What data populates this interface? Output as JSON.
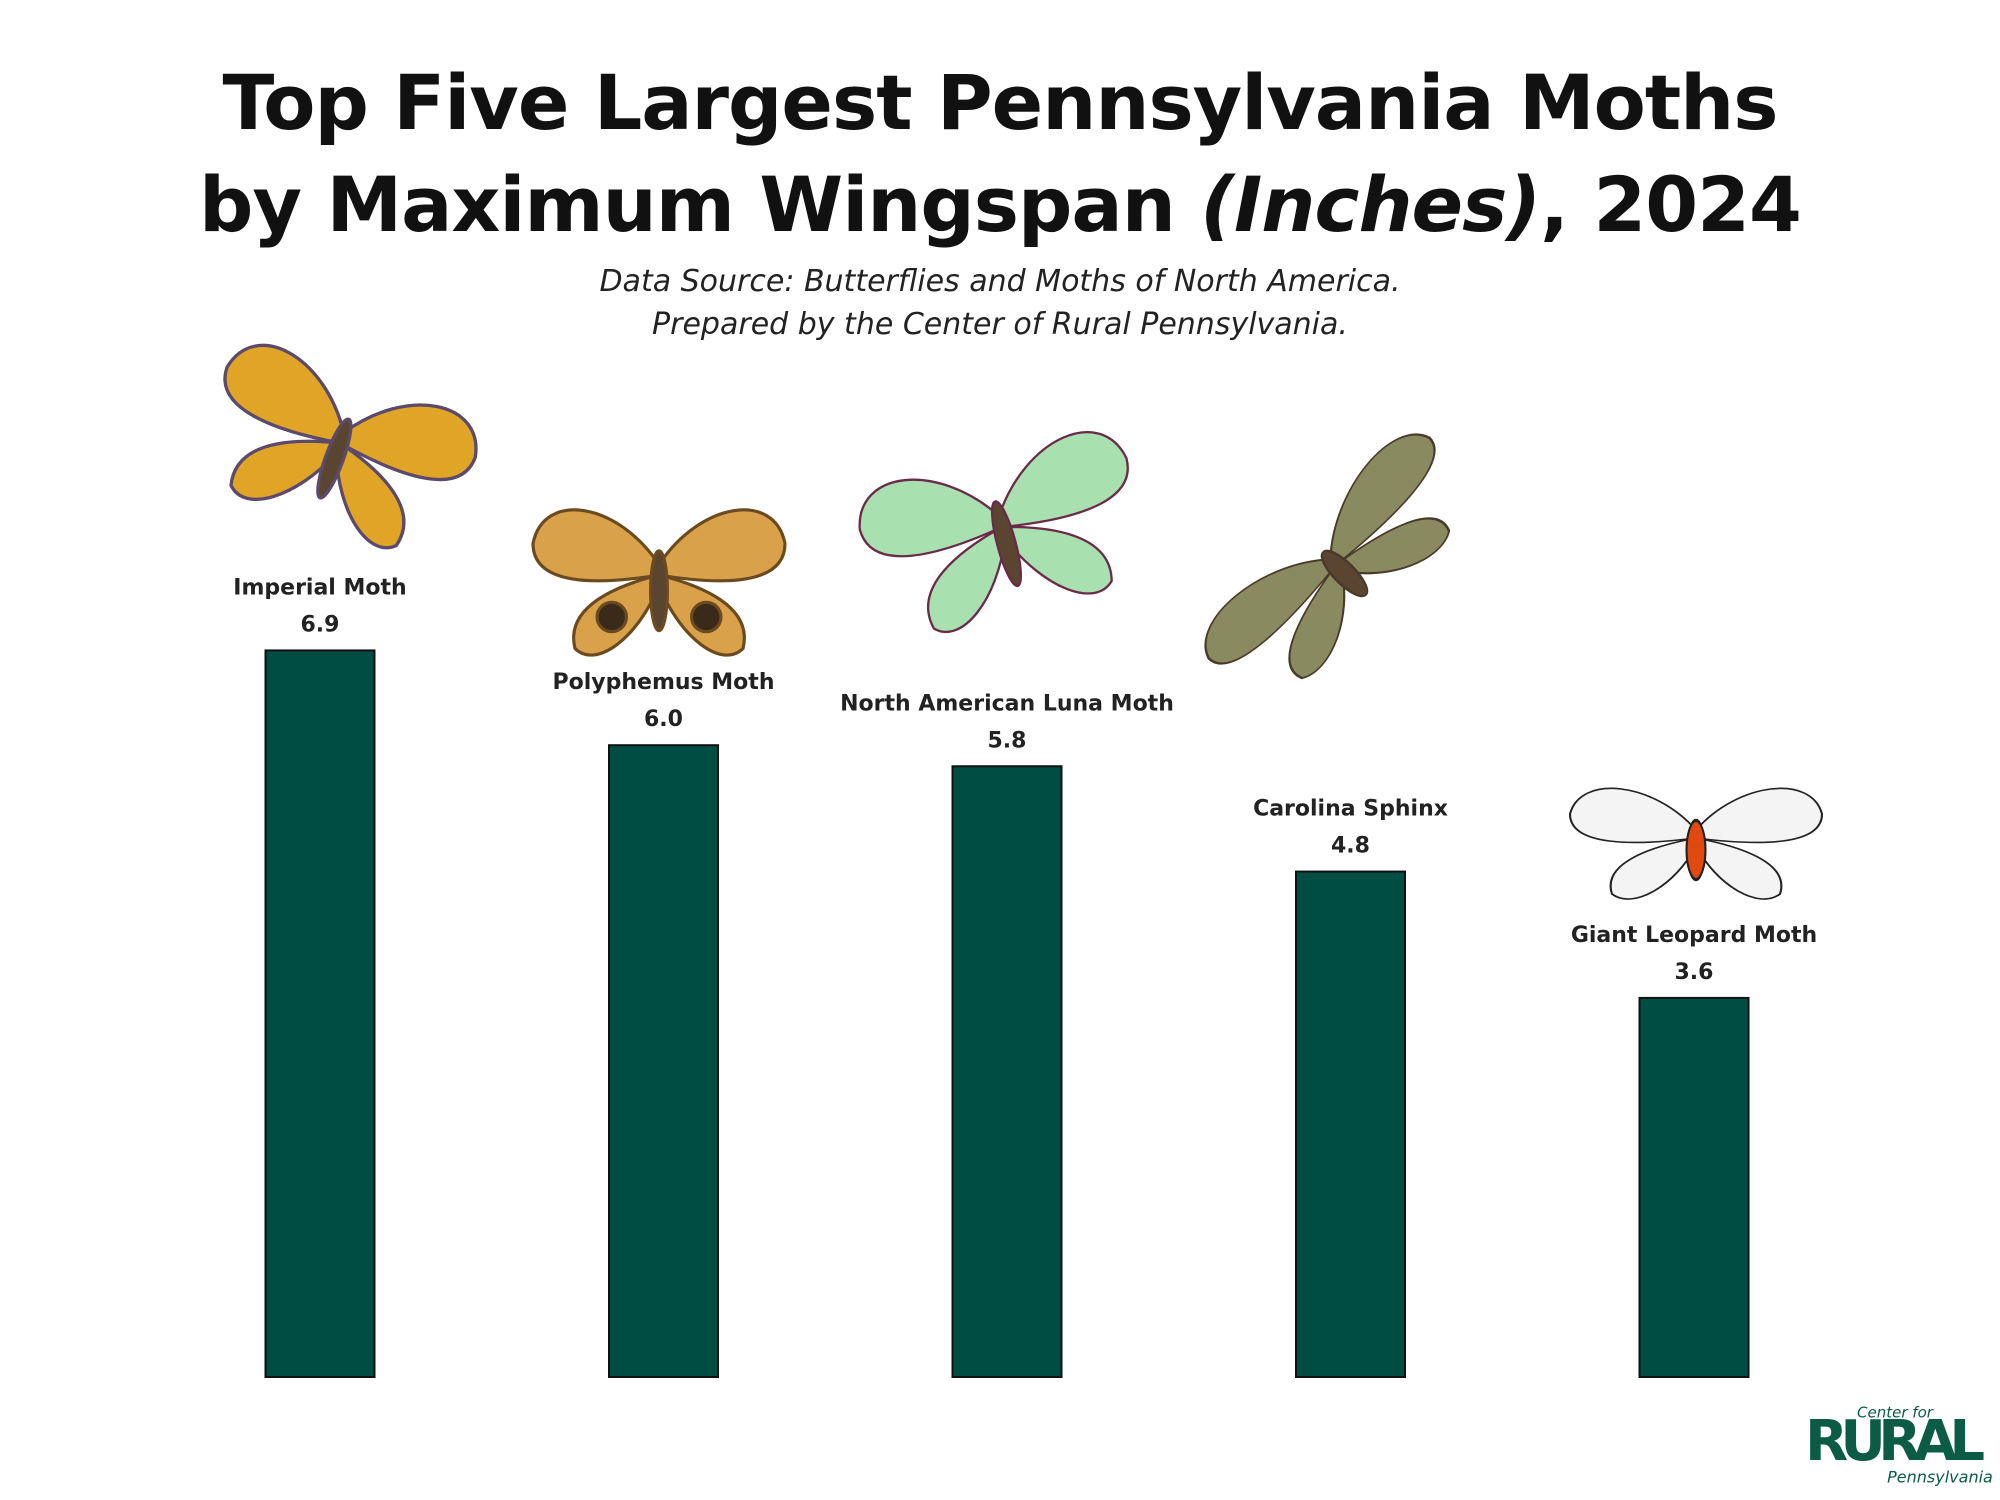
{
  "chart_data": {
    "type": "bar",
    "title": [
      "Top Five Largest Pennsylvania Moths",
      "by Maximum Wingspan",
      "(Inches)",
      ", 2024"
    ],
    "subtitle": [
      "Data Source: Butterflies and Moths of North America.",
      "Prepared by the Center of Rural Pennsylvania."
    ],
    "categories": [
      "Imperial Moth",
      "Polyphemus Moth",
      "North American Luna Moth",
      "Carolina Sphinx",
      "Giant Leopard Moth"
    ],
    "values": [
      6.9,
      6.0,
      5.8,
      4.8,
      3.6
    ],
    "value_labels": [
      "6.9",
      "6.0",
      "5.8",
      "4.8",
      "3.6"
    ],
    "color": "#004d43"
  },
  "logo": {
    "top": "Center for",
    "main": "RURAL",
    "bottom": "Pennsylvania"
  }
}
